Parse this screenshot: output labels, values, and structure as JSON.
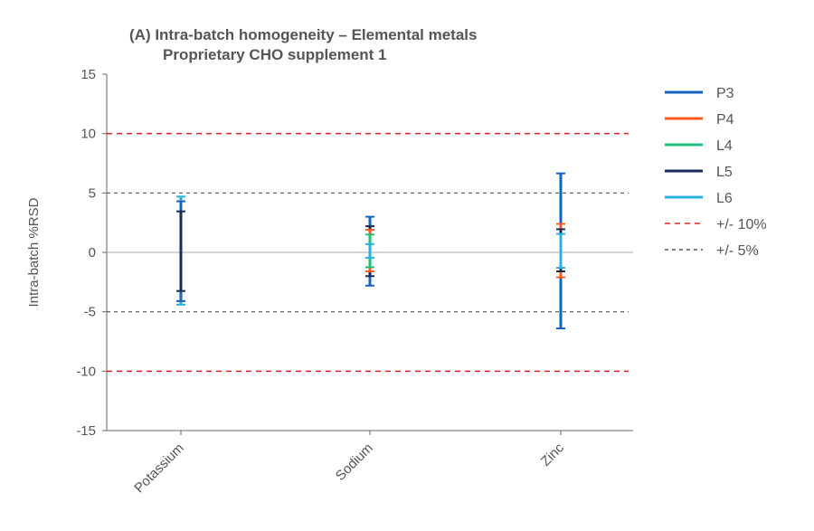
{
  "chart_data": {
    "type": "error-bar",
    "title": "(A) Intra-batch homogeneity – Elemental metals",
    "subtitle": "Proprietary CHO supplement 1",
    "ylabel": "Intra-batch %RSD",
    "xlabel": "",
    "ylim": [
      -15,
      15
    ],
    "yticks": [
      15,
      10,
      5,
      0,
      -5,
      -10,
      -15
    ],
    "categories": [
      "Potassium",
      "Sodium",
      "Zinc"
    ],
    "series": [
      {
        "name": "P3",
        "color": "#1565c0",
        "ranges": [
          [
            -4.1,
            4.3
          ],
          [
            -2.8,
            3.0
          ],
          [
            -6.4,
            6.65
          ]
        ]
      },
      {
        "name": "P4",
        "color": "#ff5a1f",
        "ranges": [
          null,
          [
            -1.6,
            1.9
          ],
          [
            -2.1,
            2.4
          ]
        ]
      },
      {
        "name": "L4",
        "color": "#1fbf7a",
        "ranges": [
          null,
          [
            -1.25,
            1.5
          ],
          null
        ]
      },
      {
        "name": "L5",
        "color": "#1a2b55",
        "ranges": [
          [
            -3.25,
            3.45
          ],
          [
            -2.0,
            2.2
          ],
          [
            -1.6,
            1.95
          ]
        ]
      },
      {
        "name": "L6",
        "color": "#29b0e0",
        "ranges": [
          [
            -4.4,
            4.7
          ],
          [
            -0.45,
            0.7
          ],
          [
            -1.3,
            1.55
          ]
        ]
      }
    ],
    "reference_lines": [
      {
        "name": "+/- 10%",
        "values": [
          10,
          -10
        ],
        "color": "#e0202a",
        "style": "dashed"
      },
      {
        "name": "+/- 5%",
        "values": [
          5,
          -5
        ],
        "color": "#555555",
        "style": "dotted"
      }
    ],
    "legend": "right",
    "grid": false
  }
}
